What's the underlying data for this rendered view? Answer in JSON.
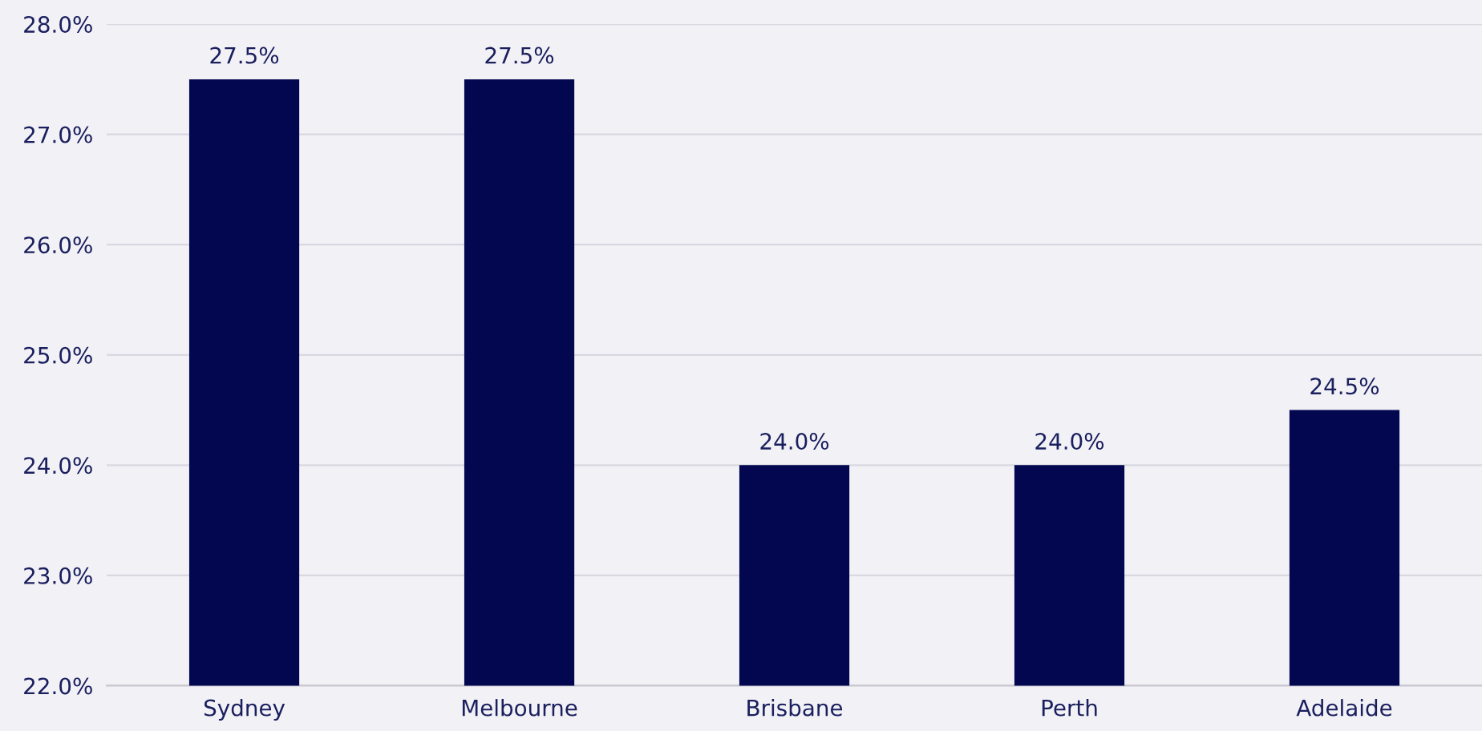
{
  "chart_data": {
    "type": "bar",
    "categories": [
      "Sydney",
      "Melbourne",
      "Brisbane",
      "Perth",
      "Adelaide"
    ],
    "values": [
      27.5,
      27.5,
      24.0,
      24.0,
      24.5
    ],
    "value_labels": [
      "27.5%",
      "27.5%",
      "24.0%",
      "24.0%",
      "24.5%"
    ],
    "color": "#020750",
    "ylim": [
      22,
      28
    ],
    "yticks": [
      {
        "value": 22,
        "label": "22.0%"
      },
      {
        "value": 23,
        "label": "23.0%"
      },
      {
        "value": 24,
        "label": "24.0%"
      },
      {
        "value": 25,
        "label": "25.0%"
      },
      {
        "value": 26,
        "label": "26.0%"
      },
      {
        "value": 27,
        "label": "27.0%"
      },
      {
        "value": 28,
        "label": "28.0%"
      }
    ],
    "grid": "y",
    "legend": false
  }
}
